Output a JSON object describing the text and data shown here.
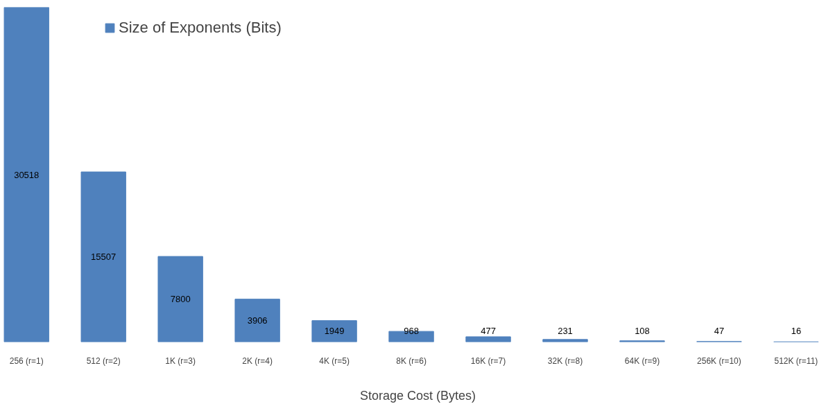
{
  "chart_data": {
    "type": "bar",
    "xlabel": "Storage Cost (Bytes)",
    "categories": [
      "256 (r=1)",
      "512 (r=2)",
      "1K (r=3)",
      "2K (r=4)",
      "4K (r=5)",
      "8K (r=6)",
      "16K (r=7)",
      "32K (r=8)",
      "64K (r=9)",
      "256K (r=10)",
      "512K (r=11)"
    ],
    "series": [
      {
        "name": "Size of Exponents (Bits)",
        "color": "#4f81bd",
        "values": [
          30518,
          15507,
          7800,
          3906,
          1949,
          968,
          477,
          231,
          108,
          47,
          16
        ]
      }
    ],
    "data_labels": true,
    "legend": "top left",
    "grid": false
  }
}
